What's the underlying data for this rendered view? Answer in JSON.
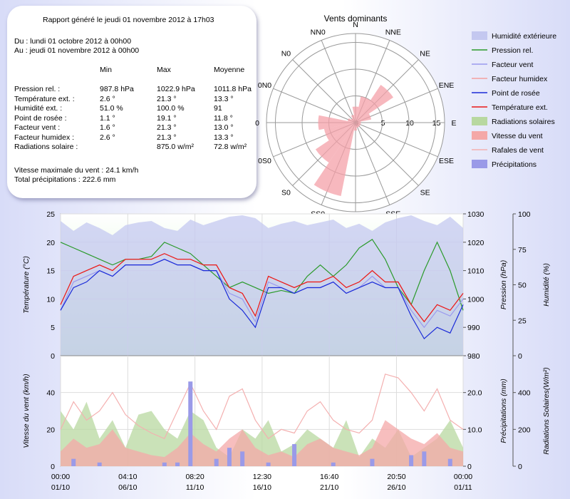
{
  "report": {
    "title": "Rapport généré le jeudi 01 novembre 2012 à 17h03",
    "from": "Du : lundi 01 octobre 2012 à 00h00",
    "to": "Au : jeudi 01 novembre 2012 à 00h00",
    "headers": [
      "Min",
      "Max",
      "Moyenne"
    ],
    "rows": [
      [
        "Pression rel. :",
        "987.8 hPa",
        "1022.9 hPa",
        "1011.8 hPa"
      ],
      [
        "Température ext. :",
        "2.6 °",
        "21.3 °",
        "13.3 °"
      ],
      [
        "Humidité ext. :",
        "51.0 %",
        "100.0 %",
        "91"
      ],
      [
        "Point de rosée :",
        "1.1 °",
        "19.1 °",
        "11.8 °"
      ],
      [
        "Facteur vent :",
        "1.6 °",
        "21.3 °",
        "13.0 °"
      ],
      [
        "Facteur humidex :",
        "2.6 °",
        "21.3 °",
        "13.3 °"
      ],
      [
        "Radiations solaire :",
        null,
        "875.0 w/m²",
        "72.8 w/m²"
      ]
    ],
    "max_wind": "Vitesse maximale du vent : 24.1 km/h",
    "total_rain": "Total précipitations : 222.6 mm"
  },
  "wind_rose": {
    "title": "Vents dominants",
    "directions": [
      "N",
      "NNE",
      "NE",
      "ENE",
      "E",
      "ESE",
      "SE",
      "SSE",
      "S",
      "SS0",
      "S0",
      "0S0",
      "0",
      "0N0",
      "N0",
      "NN0"
    ],
    "values": [
      3,
      5,
      8.5,
      3,
      1,
      1,
      1,
      1,
      1.5,
      14,
      9,
      6,
      7,
      1.5,
      1,
      1.5
    ],
    "color": "#f4a0a8",
    "rticks": [
      0,
      5,
      10,
      15
    ]
  },
  "x_axis": {
    "x": [
      0,
      1,
      2,
      3,
      4,
      5,
      6,
      7,
      8,
      9,
      10,
      11,
      12,
      13,
      14,
      15,
      16,
      17,
      18,
      19,
      20,
      21,
      22,
      23,
      24,
      25,
      26,
      27,
      28,
      29,
      30,
      31
    ],
    "xlim": [
      0,
      31
    ],
    "xticks": [
      {
        "value": 0,
        "label": "00:00",
        "date": "01/10"
      },
      {
        "value": 5.1736,
        "label": "04:10",
        "date": "06/10"
      },
      {
        "value": 10.3472,
        "label": "08:20",
        "date": "11/10"
      },
      {
        "value": 15.5208,
        "label": "12:30",
        "date": "16/10"
      },
      {
        "value": 20.6944,
        "label": "16:40",
        "date": "21/10"
      },
      {
        "value": 25.8681,
        "label": "20:50",
        "date": "26/10"
      },
      {
        "value": 31,
        "label": "00:00",
        "date": "01/11"
      }
    ]
  },
  "top_chart": {
    "y_label": "Température (°C)",
    "ylim": [
      0,
      25
    ],
    "yticks": [
      0,
      5,
      10,
      15,
      20,
      25
    ],
    "y2_label": "Pression (hPa)",
    "y2lim": [
      980,
      1030
    ],
    "y2ticks": [
      980,
      990,
      1000,
      1010,
      1020,
      1030
    ],
    "y3_label": "Humidité (%)",
    "y3lim": [
      0,
      100
    ],
    "y3ticks": [
      0,
      25,
      50,
      75,
      100
    ],
    "series": [
      {
        "name": "Humidité extérieure",
        "color": "#c4c8f0",
        "axis": "y3",
        "style": "area",
        "values": [
          95,
          88,
          94,
          90,
          85,
          92,
          94,
          95,
          90,
          88,
          96,
          92,
          95,
          98,
          99,
          97,
          90,
          93,
          95,
          92,
          94,
          96,
          90,
          93,
          88,
          94,
          97,
          99,
          95,
          92,
          98,
          90
        ]
      },
      {
        "name": "Pression rel.",
        "color": "#2a9a2a",
        "axis": "y2",
        "style": "line",
        "values": [
          1020,
          1018,
          1016,
          1014,
          1012,
          1014,
          1014,
          1015,
          1020,
          1018,
          1016,
          1012,
          1008,
          1004,
          1006,
          1004,
          1002,
          1003,
          1002,
          1008,
          1012,
          1008,
          1012,
          1018,
          1021,
          1014,
          1004,
          998,
          1010,
          1020,
          1010,
          996
        ]
      },
      {
        "name": "Facteur vent",
        "color": "#9a9aee",
        "axis": "y",
        "style": "line",
        "values": [
          8,
          13,
          14,
          15,
          14,
          16,
          16,
          16,
          17,
          16,
          16,
          15,
          15,
          11,
          10,
          6,
          13,
          12,
          11,
          12,
          12,
          13,
          11,
          12,
          14,
          12,
          12,
          8,
          5,
          8,
          7,
          10
        ]
      },
      {
        "name": "Facteur humidex",
        "color": "#f4a0a0",
        "axis": "y",
        "style": "line",
        "values": [
          9,
          14,
          15,
          16,
          15,
          17,
          17,
          17,
          18,
          17,
          17,
          16,
          16,
          12,
          11,
          7,
          14,
          13,
          12,
          13,
          13,
          14,
          12,
          13,
          15,
          13,
          13,
          9,
          6,
          9,
          8,
          11
        ]
      },
      {
        "name": "Point de rosée",
        "color": "#1a2ad8",
        "axis": "y",
        "style": "line",
        "values": [
          8,
          12,
          13,
          15,
          14,
          16,
          16,
          16,
          17,
          16,
          16,
          15,
          15,
          10,
          8,
          5,
          12,
          12,
          11,
          12,
          12,
          13,
          11,
          12,
          13,
          12,
          12,
          7,
          3,
          5,
          4,
          9
        ]
      },
      {
        "name": "Température ext.",
        "color": "#e81818",
        "axis": "y",
        "style": "line",
        "values": [
          9,
          14,
          15,
          16,
          15,
          17,
          17,
          17,
          18,
          17,
          17,
          16,
          16,
          12,
          11,
          7,
          14,
          13,
          12,
          13,
          13,
          14,
          12,
          13,
          15,
          13,
          13,
          9,
          6,
          9,
          8,
          11
        ]
      }
    ]
  },
  "bottom_chart": {
    "y_label": "Vitesse du vent (km/h)",
    "ylim": [
      0,
      60
    ],
    "yticks": [
      0,
      20,
      40
    ],
    "y2_label": "Précipitations (mm)",
    "y2lim": [
      0,
      30
    ],
    "y2ticks": [
      0,
      {
        "value": 10,
        "label": "10.0"
      },
      {
        "value": 20,
        "label": "20.0"
      }
    ],
    "y3_label": "Radiations Solaires(W/m²)",
    "y3lim": [
      0,
      600
    ],
    "y3ticks": [
      0,
      200,
      400
    ],
    "series": [
      {
        "name": "Radiations solaires",
        "color": "#b8d8a0",
        "axis": "y3",
        "style": "area",
        "values": [
          300,
          200,
          350,
          150,
          250,
          100,
          280,
          300,
          200,
          150,
          300,
          250,
          100,
          50,
          200,
          150,
          250,
          80,
          120,
          200,
          150,
          100,
          250,
          50,
          150,
          100,
          200,
          50,
          100,
          150,
          250,
          100
        ]
      },
      {
        "name": "Vitesse du vent",
        "color": "#f4a8a8",
        "axis": "y",
        "style": "area",
        "values": [
          8,
          15,
          10,
          12,
          20,
          10,
          8,
          6,
          5,
          10,
          18,
          12,
          8,
          15,
          20,
          10,
          6,
          8,
          5,
          12,
          15,
          10,
          8,
          6,
          10,
          25,
          20,
          15,
          12,
          18,
          10,
          8
        ]
      },
      {
        "name": "Rafales de vent",
        "color": "#f4b0b0",
        "axis": "y",
        "style": "line",
        "values": [
          20,
          35,
          25,
          30,
          40,
          28,
          22,
          18,
          15,
          30,
          45,
          30,
          20,
          38,
          42,
          25,
          15,
          20,
          18,
          30,
          35,
          25,
          20,
          18,
          25,
          50,
          48,
          40,
          30,
          42,
          25,
          20
        ]
      },
      {
        "name": "Précipitations",
        "color": "#9a9ae8",
        "axis": "y2",
        "style": "bar",
        "values": [
          0,
          2,
          0,
          1,
          0,
          0,
          0,
          0,
          1,
          1,
          23,
          0,
          2,
          5,
          4,
          0,
          1,
          0,
          6,
          0,
          0,
          1,
          0,
          0,
          2,
          0,
          0,
          3,
          4,
          0,
          2,
          0
        ]
      }
    ]
  }
}
